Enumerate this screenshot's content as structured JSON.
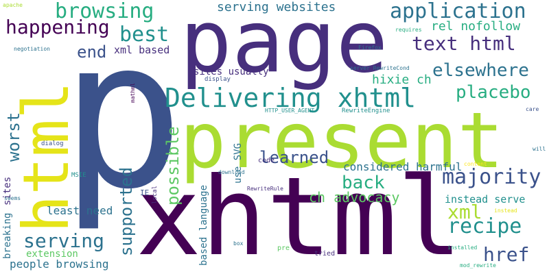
{
  "palette": {
    "dark_purple": "#440154",
    "indigo": "#472f7d",
    "blue_violet": "#3b528b",
    "steel_blue": "#2c728e",
    "teal": "#21908d",
    "green_teal": "#27ad81",
    "green": "#5cc863",
    "yellow_green": "#aadc32",
    "yellow": "#e5e419",
    "pale_yellow": "#fde725"
  },
  "words": {
    "p": "p",
    "page": "page",
    "xhtml_big": "xhtml",
    "present": "present",
    "html_vertical": "html",
    "delivering_xhtml": "Delivering xhtml",
    "browsing": "browsing",
    "serving_websites": "serving websites",
    "application": "application",
    "happening": "happening",
    "best": "best",
    "rel_nofollow": "rel nofollow",
    "text_html": "text html",
    "end": "end",
    "xml_based": "xml based",
    "elsewhere": "elsewhere",
    "sites_usually": "sites usually",
    "hixie_ch": "hixie ch",
    "placebo": "placebo",
    "worst": "worst",
    "possible": "possible",
    "supported": "supported",
    "use_svg": "use SVG",
    "learned": "learned",
    "considered_harmful": "considered harmful",
    "majority": "majority",
    "back": "back",
    "ch_advocacy": "ch advocacy",
    "xml": "xml",
    "instead_serve": "instead serve",
    "recipe": "recipe",
    "href": "href",
    "least_need": "least need",
    "serving": "serving",
    "based_language": "based language",
    "extension": "extension",
    "people_browsing": "people browsing",
    "breaking": "breaking",
    "sites": "sites",
    "seems": "seems",
    "ie": "IE",
    "local": "local",
    "msie": "MSIE",
    "dialog": "dialog",
    "code": "code",
    "download": "download",
    "rewriterule": "RewriteRule",
    "box": "box",
    "pre": "pre",
    "tried": "tried",
    "installed": "installed",
    "mod_rewrite": "mod_rewrite",
    "instead": "instead",
    "content": "content",
    "will": "will",
    "care": "care",
    "rewriteengine": "RewriteEngine",
    "http_user_agent": "HTTP_USER_AGENT",
    "display": "display",
    "mathml": "mathml",
    "server_rewritecond": "server RewriteCond",
    "firefox": "Firefox",
    "negotiation": "negotiation",
    "requires": "requires",
    "apache": "apache"
  }
}
